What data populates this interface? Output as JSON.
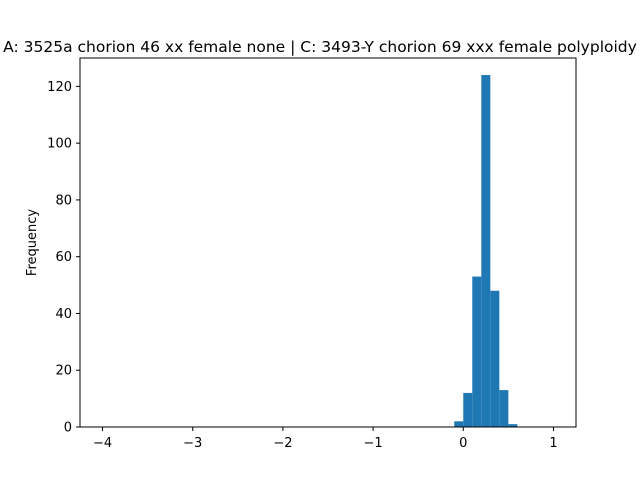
{
  "chart_data": {
    "type": "bar",
    "title": "A: 3525a chorion 46 xx female none | C: 3493-Y chorion 69 xxx female polyploidy",
    "xlabel": "",
    "ylabel": "Frequency",
    "xlim": [
      -4.25,
      1.25
    ],
    "ylim": [
      0,
      130
    ],
    "xticks": [
      -4,
      -3,
      -2,
      -1,
      0,
      1
    ],
    "yticks": [
      0,
      20,
      40,
      60,
      80,
      100,
      120
    ],
    "bar_color": "#1f77b4",
    "bins": [
      {
        "x0": -0.1,
        "x1": 0.0,
        "value": 2
      },
      {
        "x0": 0.0,
        "x1": 0.1,
        "value": 12
      },
      {
        "x0": 0.1,
        "x1": 0.2,
        "value": 53
      },
      {
        "x0": 0.2,
        "x1": 0.3,
        "value": 124
      },
      {
        "x0": 0.3,
        "x1": 0.4,
        "value": 48
      },
      {
        "x0": 0.4,
        "x1": 0.5,
        "value": 13
      },
      {
        "x0": 0.5,
        "x1": 0.6,
        "value": 1
      }
    ],
    "grid": false,
    "legend": "none"
  }
}
